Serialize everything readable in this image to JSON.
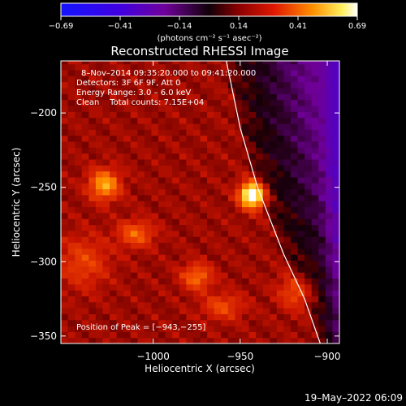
{
  "chart_data": {
    "type": "heatmap",
    "title": "Reconstructed RHESSI Image",
    "xlabel": "Heliocentric X (arcsec)",
    "ylabel": "Heliocentric Y (arcsec)",
    "xlim": [
      -1053,
      -893
    ],
    "ylim": [
      -355,
      -165
    ],
    "xticks": [
      {
        "value": -1000,
        "label": "−1000"
      },
      {
        "value": -950,
        "label": "−950"
      },
      {
        "value": -900,
        "label": "−900"
      }
    ],
    "yticks": [
      {
        "value": -200,
        "label": "−200"
      },
      {
        "value": -250,
        "label": "−250"
      },
      {
        "value": -300,
        "label": "−300"
      },
      {
        "value": -350,
        "label": "−350"
      }
    ],
    "colorbar": {
      "min": -0.69,
      "max": 0.69,
      "ticks": [
        "−0.69",
        "−0.41",
        "−0.14",
        "0.14",
        "0.41",
        "0.69"
      ],
      "units_label": "(photons cm⁻² s⁻¹ asec⁻²)"
    },
    "info_lines": [
      "8–Nov–2014 09:35:20.000 to 09:41:20.000",
      "Detectors: 3F 6F 9F, Att 0",
      "Energy Range: 3.0 – 6.0 keV",
      "Clean    Total counts: 7.15E+04"
    ],
    "peak": {
      "x": -943,
      "y": -255,
      "label": "Position of Peak = [−943,−255]"
    },
    "sources": [
      {
        "x": -943,
        "y": -255,
        "amp": 0.69,
        "sx": 5,
        "sy": 6
      },
      {
        "x": -1028,
        "y": -248,
        "amp": 0.4,
        "sx": 6,
        "sy": 7
      },
      {
        "x": -1010,
        "y": -281,
        "amp": 0.26,
        "sx": 7,
        "sy": 6
      },
      {
        "x": -975,
        "y": -310,
        "amp": 0.28,
        "sx": 6,
        "sy": 6
      },
      {
        "x": -960,
        "y": -330,
        "amp": 0.2,
        "sx": 8,
        "sy": 6
      },
      {
        "x": -918,
        "y": -320,
        "amp": 0.2,
        "sx": 7,
        "sy": 8
      },
      {
        "x": -1040,
        "y": -300,
        "amp": 0.18,
        "sx": 10,
        "sy": 12
      }
    ],
    "limb_curve": [
      [
        -958,
        -165
      ],
      [
        -950,
        -210
      ],
      [
        -940,
        -250
      ],
      [
        -925,
        -295
      ],
      [
        -913,
        -325
      ],
      [
        -904,
        -355
      ]
    ]
  },
  "footer_timestamp": "19–May–2022 06:09"
}
